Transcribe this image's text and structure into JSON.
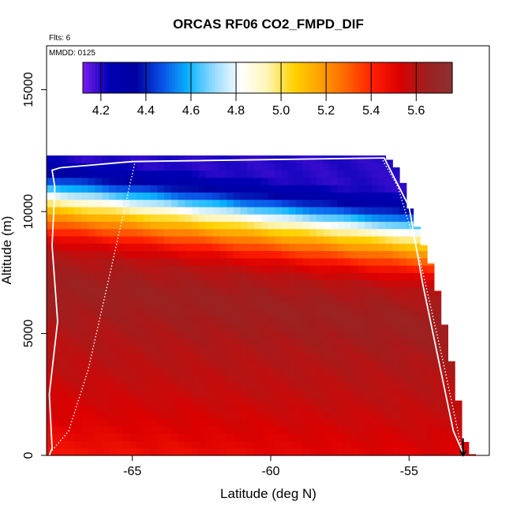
{
  "chart_data": {
    "type": "heatmap",
    "title": "ORCAS RF06 CO2_FMPD_DIF",
    "annotations": {
      "flights": "Flts: 6",
      "date": "MMDD: 0125"
    },
    "xlabel": "Latitude (deg N)",
    "ylabel": "Altitude (m)",
    "xlim": [
      -68.1,
      -52.1
    ],
    "ylim": [
      0,
      16800
    ],
    "x_ticks": [
      -65,
      -60,
      -55
    ],
    "x_tick_labels": [
      "-65",
      "-60",
      "-55"
    ],
    "y_ticks": [
      0,
      5000,
      10000,
      15000
    ],
    "y_tick_labels": [
      "0",
      "5000",
      "10000",
      "15000"
    ],
    "colorbar": {
      "range": [
        4.12,
        5.76
      ],
      "ticks": [
        4.2,
        4.4,
        4.6,
        4.8,
        5.0,
        5.2,
        5.4,
        5.6
      ],
      "tick_labels": [
        "4.2",
        "4.4",
        "4.6",
        "4.8",
        "5.0",
        "5.2",
        "5.4",
        "5.6"
      ],
      "colors": [
        "#7a1cf0",
        "#0000b4",
        "#0000a0",
        "#0a50e6",
        "#0ab4ff",
        "#9adcff",
        "#ffffff",
        "#fff5b4",
        "#ffd200",
        "#ffa000",
        "#ff6400",
        "#ff1e00",
        "#dc0000",
        "#a01e1e",
        "#8c3232"
      ]
    },
    "grid": {
      "lat_start": -68.1,
      "lat_step": 0.25,
      "alt_step": 300,
      "top_altitude_profile": [
        {
          "lat": -68.1,
          "top": 12300
        },
        {
          "lat": -55.9,
          "top": 12300
        },
        {
          "lat": -55.6,
          "top": 12000
        },
        {
          "lat": -55.4,
          "top": 11700
        },
        {
          "lat": -55.2,
          "top": 11100
        },
        {
          "lat": -55.0,
          "top": 10200
        },
        {
          "lat": -54.8,
          "top": 9600
        },
        {
          "lat": -54.6,
          "top": 9000
        },
        {
          "lat": -54.4,
          "top": 8400
        },
        {
          "lat": -54.2,
          "top": 7800
        },
        {
          "lat": -54.0,
          "top": 6900
        },
        {
          "lat": -53.8,
          "top": 5700
        },
        {
          "lat": -53.6,
          "top": 4800
        },
        {
          "lat": -53.4,
          "top": 3300
        },
        {
          "lat": -53.2,
          "top": 2100
        },
        {
          "lat": -53.0,
          "top": 600
        },
        {
          "lat": -52.7,
          "top": 0
        }
      ],
      "vertical_profile": [
        {
          "alt": 0,
          "value": 5.45
        },
        {
          "alt": 1500,
          "value": 5.52
        },
        {
          "alt": 3500,
          "value": 5.58
        },
        {
          "alt": 5500,
          "value": 5.62
        },
        {
          "alt": 7000,
          "value": 5.66
        },
        {
          "alt": 8300,
          "value": 5.6
        },
        {
          "alt": 8900,
          "value": 5.5
        },
        {
          "alt": 9500,
          "value": 5.3
        },
        {
          "alt": 10000,
          "value": 5.12
        },
        {
          "alt": 10400,
          "value": 4.95
        },
        {
          "alt": 10800,
          "value": 4.72
        },
        {
          "alt": 11200,
          "value": 4.5
        },
        {
          "alt": 11700,
          "value": 4.3
        },
        {
          "alt": 12300,
          "value": 4.2
        }
      ],
      "tilt_altitude_per_degree": 115
    },
    "flight_track": [
      {
        "lat": -68.0,
        "alt": 0
      },
      {
        "lat": -67.9,
        "alt": 300
      },
      {
        "lat": -68.0,
        "alt": 2500
      },
      {
        "lat": -67.7,
        "alt": 5500
      },
      {
        "lat": -67.9,
        "alt": 8600
      },
      {
        "lat": -67.8,
        "alt": 11000
      },
      {
        "lat": -67.9,
        "alt": 11700
      },
      {
        "lat": -67.6,
        "alt": 11800
      },
      {
        "lat": -65.0,
        "alt": 12050
      },
      {
        "lat": -55.9,
        "alt": 12200
      },
      {
        "lat": -55.0,
        "alt": 10200
      },
      {
        "lat": -54.5,
        "alt": 7000
      },
      {
        "lat": -53.4,
        "alt": 1000
      },
      {
        "lat": -53.05,
        "alt": 100
      }
    ],
    "flight_track_2": [
      {
        "lat": -67.9,
        "alt": 200
      },
      {
        "lat": -67.3,
        "alt": 1000
      },
      {
        "lat": -66.6,
        "alt": 3500
      },
      {
        "lat": -65.8,
        "alt": 7500
      },
      {
        "lat": -64.9,
        "alt": 12050
      },
      {
        "lat": -56.0,
        "alt": 12200
      },
      {
        "lat": -55.4,
        "alt": 11000
      },
      {
        "lat": -54.6,
        "alt": 8000
      },
      {
        "lat": -53.8,
        "alt": 4000
      },
      {
        "lat": -53.05,
        "alt": 0
      }
    ],
    "arrow_marker": {
      "lat": -53.05,
      "alt_from": 700,
      "alt_to": 0
    }
  }
}
